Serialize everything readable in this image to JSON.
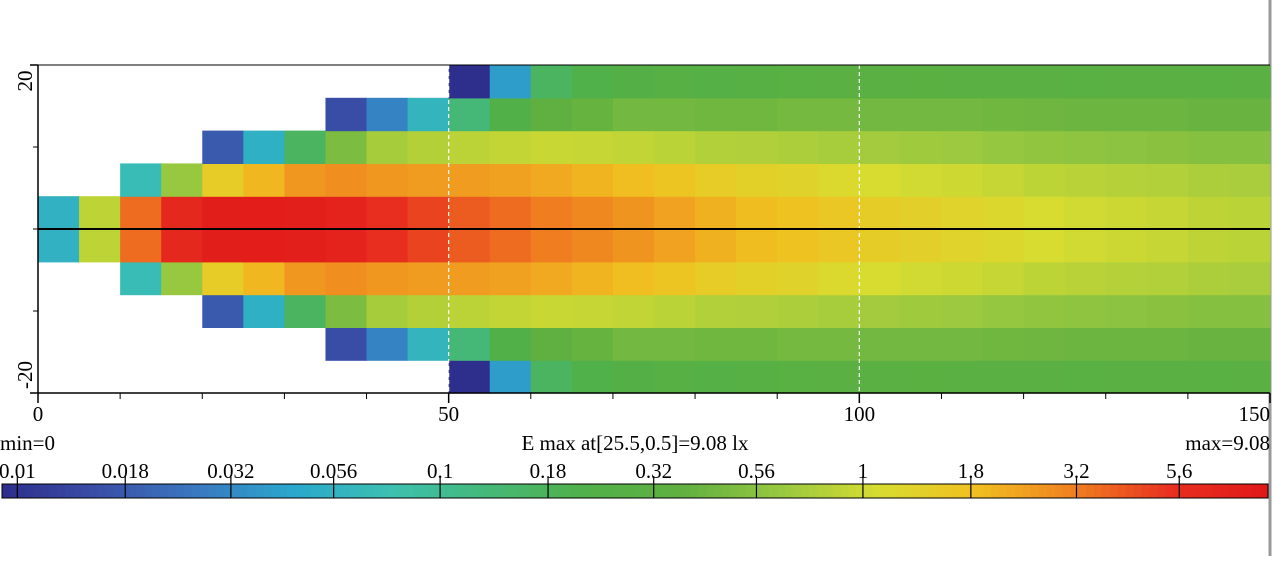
{
  "chart_data": {
    "type": "heatmap",
    "x": [
      2.5,
      7.5,
      12.5,
      17.5,
      22.5,
      27.5,
      32.5,
      37.5,
      42.5,
      47.5,
      52.5,
      57.5,
      62.5,
      67.5,
      72.5,
      77.5,
      82.5,
      87.5,
      92.5,
      97.5,
      102.5,
      107.5,
      112.5,
      117.5,
      122.5,
      127.5,
      132.5,
      137.5,
      142.5,
      147.5
    ],
    "y": [
      -18,
      -14,
      -10,
      -6,
      -2,
      2,
      6,
      10,
      14,
      18
    ],
    "z": [
      [
        null,
        null,
        null,
        null,
        null,
        null,
        null,
        null,
        null,
        null,
        0.009,
        0.04,
        0.17,
        0.22,
        0.25,
        0.28,
        0.26,
        0.28,
        0.3,
        0.31,
        0.31,
        0.32,
        0.31,
        0.31,
        0.31,
        0.3,
        0.31,
        0.31,
        0.3,
        0.31
      ],
      [
        null,
        null,
        null,
        null,
        null,
        null,
        null,
        0.015,
        0.03,
        0.06,
        0.13,
        0.23,
        0.37,
        0.4,
        0.45,
        0.45,
        0.44,
        0.44,
        0.46,
        0.46,
        0.45,
        0.45,
        0.45,
        0.44,
        0.43,
        0.42,
        0.42,
        0.42,
        0.41,
        0.41
      ],
      [
        null,
        null,
        null,
        null,
        0.018,
        0.054,
        0.17,
        0.49,
        0.72,
        0.8,
        0.86,
        0.91,
        0.95,
        0.93,
        0.9,
        0.85,
        0.79,
        0.78,
        0.76,
        0.73,
        0.7,
        0.68,
        0.66,
        0.63,
        0.6,
        0.58,
        0.57,
        0.56,
        0.54,
        0.54
      ],
      [
        null,
        null,
        0.07,
        0.64,
        1.5,
        2.0,
        2.6,
        2.8,
        2.6,
        2.5,
        2.5,
        2.4,
        2.24,
        2.05,
        1.88,
        1.68,
        1.5,
        1.36,
        1.28,
        1.17,
        1.09,
        1.03,
        0.99,
        0.94,
        0.87,
        0.84,
        0.81,
        0.79,
        0.76,
        0.74
      ],
      [
        0.055,
        0.87,
        3.6,
        6.4,
        7.9,
        8.1,
        7.7,
        6.9,
        5.6,
        4.7,
        4.0,
        3.6,
        3.2,
        2.95,
        2.66,
        2.38,
        2.09,
        1.9,
        1.76,
        1.62,
        1.48,
        1.38,
        1.29,
        1.19,
        1.1,
        1.03,
        0.98,
        0.93,
        0.88,
        0.85
      ],
      [
        0.055,
        0.87,
        3.6,
        6.4,
        7.9,
        8.1,
        7.7,
        6.9,
        5.6,
        4.7,
        4.0,
        3.6,
        3.2,
        2.95,
        2.66,
        2.38,
        2.09,
        1.9,
        1.76,
        1.62,
        1.48,
        1.38,
        1.29,
        1.19,
        1.1,
        1.03,
        0.98,
        0.93,
        0.88,
        0.85
      ],
      [
        null,
        null,
        0.07,
        0.64,
        1.5,
        2.0,
        2.6,
        2.8,
        2.6,
        2.5,
        2.5,
        2.4,
        2.24,
        2.05,
        1.88,
        1.68,
        1.5,
        1.36,
        1.28,
        1.17,
        1.09,
        1.03,
        0.99,
        0.94,
        0.87,
        0.84,
        0.81,
        0.79,
        0.76,
        0.74
      ],
      [
        null,
        null,
        null,
        null,
        0.018,
        0.054,
        0.17,
        0.49,
        0.72,
        0.8,
        0.86,
        0.91,
        0.95,
        0.93,
        0.9,
        0.85,
        0.79,
        0.78,
        0.76,
        0.73,
        0.7,
        0.68,
        0.66,
        0.63,
        0.6,
        0.58,
        0.57,
        0.56,
        0.54,
        0.54
      ],
      [
        null,
        null,
        null,
        null,
        null,
        null,
        null,
        0.015,
        0.03,
        0.06,
        0.13,
        0.23,
        0.37,
        0.4,
        0.45,
        0.45,
        0.44,
        0.44,
        0.46,
        0.46,
        0.45,
        0.45,
        0.45,
        0.44,
        0.43,
        0.42,
        0.42,
        0.42,
        0.41,
        0.41
      ],
      [
        null,
        null,
        null,
        null,
        null,
        null,
        null,
        null,
        null,
        null,
        0.009,
        0.04,
        0.17,
        0.22,
        0.25,
        0.28,
        0.26,
        0.28,
        0.3,
        0.31,
        0.31,
        0.32,
        0.31,
        0.31,
        0.31,
        0.3,
        0.31,
        0.31,
        0.3,
        0.31
      ]
    ],
    "xlim": [
      0,
      150
    ],
    "xticks": [
      0,
      50,
      100,
      150
    ],
    "xminor": [
      10,
      20,
      30,
      40,
      60,
      70,
      80,
      90,
      110,
      120,
      130,
      140
    ],
    "ylim": [
      -20,
      20
    ],
    "yticks": [
      -20,
      20
    ],
    "yminor": [
      -10,
      0,
      10
    ],
    "hline": 0,
    "grid": true,
    "min_label": "min=0",
    "annotation": "E max at[25.5,0.5]=9.08 lx",
    "max_label": "max=9.08",
    "colorbar": {
      "scale": "log",
      "clim": [
        0.0092,
        9.08
      ],
      "ticks": [
        0.01,
        0.018,
        0.032,
        0.056,
        0.1,
        0.18,
        0.32,
        0.56,
        1,
        1.8,
        3.2,
        5.6
      ]
    },
    "colormap": [
      "#2e2e8c",
      "#3a4fa8",
      "#3a78c0",
      "#2aa8cc",
      "#3cc0b0",
      "#45b878",
      "#50b048",
      "#60b040",
      "#98c840",
      "#d8dc30",
      "#f0c020",
      "#f08020",
      "#e83020",
      "#e01818"
    ]
  }
}
